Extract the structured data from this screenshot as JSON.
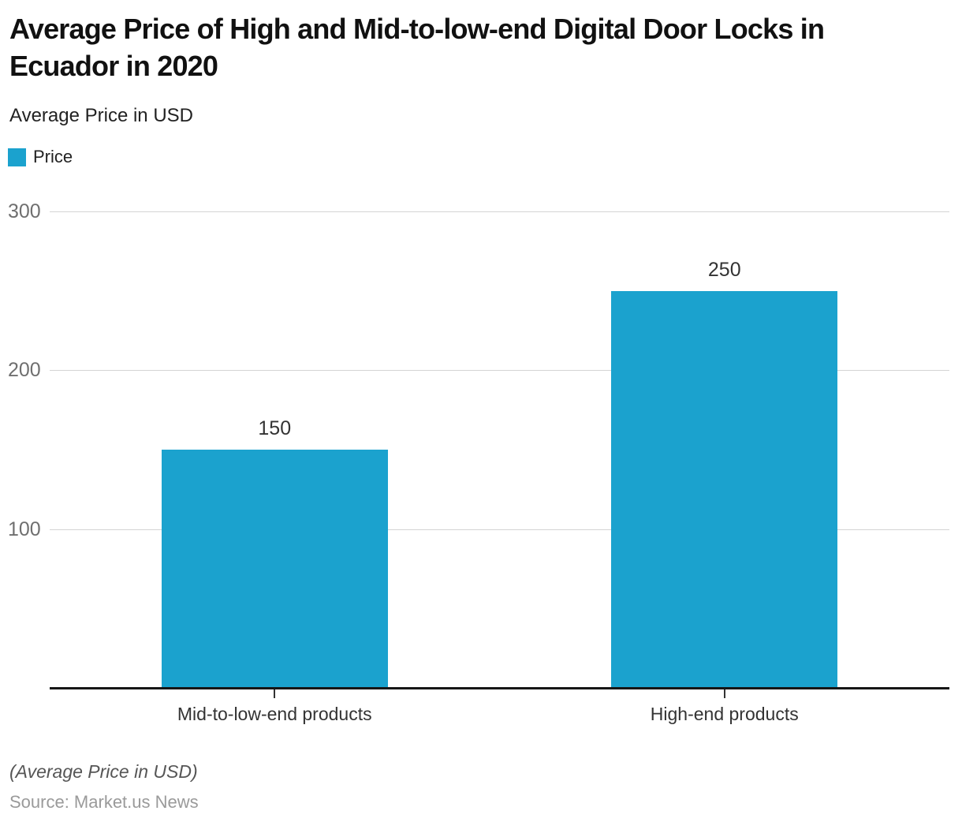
{
  "header": {
    "title": "Average Price of High and Mid-to-low-end Digital Door Locks in Ecuador in 2020",
    "subtitle": "Average Price in USD"
  },
  "legend": {
    "items": [
      {
        "label": "Price",
        "color": "#1ba2ce"
      }
    ]
  },
  "chart_data": {
    "type": "bar",
    "title": "Average Price of High and Mid-to-low-end Digital Door Locks in Ecuador in 2020",
    "subtitle": "Average Price in USD",
    "categories": [
      "Mid-to-low-end products",
      "High-end products"
    ],
    "series": [
      {
        "name": "Price",
        "values": [
          150,
          250
        ]
      }
    ],
    "value_labels": [
      "150",
      "250"
    ],
    "xlabel": "",
    "ylabel": "Average Price in USD",
    "ylim": [
      0,
      300
    ],
    "y_ticks": [
      300,
      200,
      100
    ],
    "grid": true,
    "legend_position": "top-left",
    "bar_color": "#1ba2ce"
  },
  "footer": {
    "note": "(Average Price in USD)",
    "source": "Source: Market.us News"
  },
  "colors": {
    "bar": "#1ba2ce",
    "gridline": "#d4d4d4",
    "axis_line": "#161616",
    "y_label": "#6f6f6f",
    "value_label": "#333333",
    "category_label": "#333333"
  }
}
